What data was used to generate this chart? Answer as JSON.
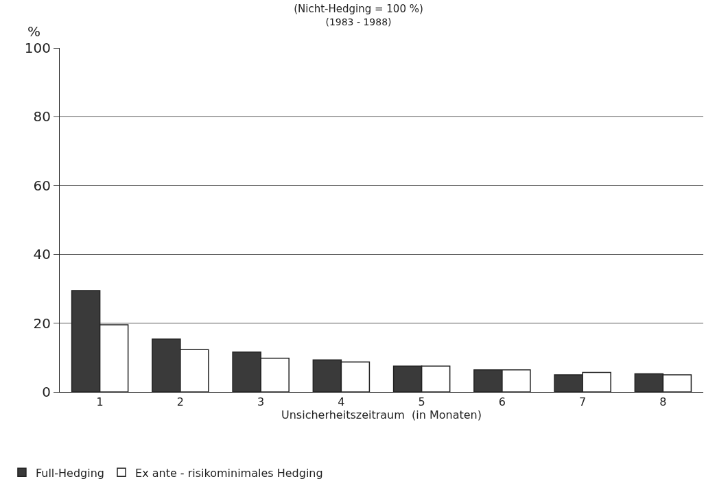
{
  "chart_data": {
    "type": "bar",
    "title": "(Nicht-Hedging = 100 %)",
    "subtitle": "(1983 - 1988)",
    "xlabel": "Unsicherheitszeitraum  (in Monaten)",
    "ylabel": "%",
    "categories": [
      "1",
      "2",
      "3",
      "4",
      "5",
      "6",
      "7",
      "8"
    ],
    "series": [
      {
        "name": "Full-Hedging",
        "color": "#3a3a3a",
        "values": [
          29.5,
          15.4,
          11.6,
          9.3,
          7.5,
          6.4,
          5,
          5.3
        ]
      },
      {
        "name": "Ex ante - risikominimales Hedging",
        "color": "#ffffff",
        "values": [
          19.5,
          12.3,
          9.8,
          8.7,
          7.5,
          6.4,
          5.7,
          5
        ]
      }
    ],
    "ylim": [
      0,
      100
    ],
    "yticks": [
      0,
      20,
      40,
      60,
      80,
      100
    ],
    "grid": "y",
    "legend": "bottom left"
  }
}
